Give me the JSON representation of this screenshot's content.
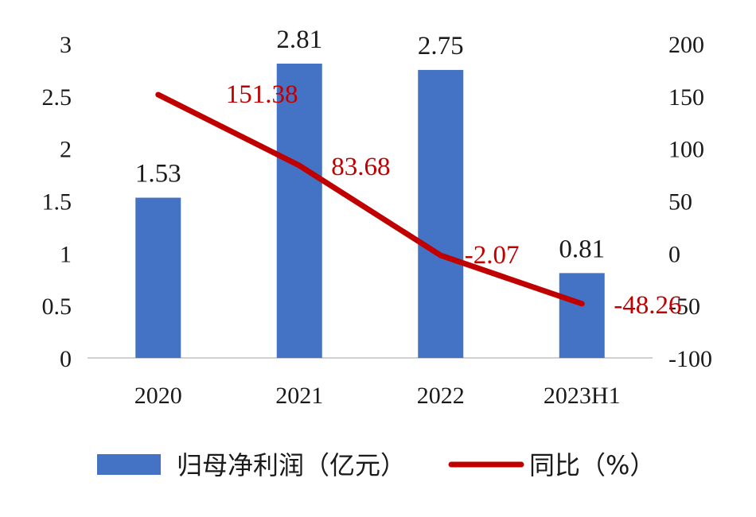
{
  "chart_data": {
    "type": "bar",
    "categories": [
      "2020",
      "2021",
      "2022",
      "2023H1"
    ],
    "series": [
      {
        "name": "归母净利润（亿元）",
        "type": "bar",
        "axis": "left",
        "values": [
          1.53,
          2.81,
          2.75,
          0.81
        ],
        "labels": [
          "1.53",
          "2.81",
          "2.75",
          "0.81"
        ],
        "color": "#4472C4"
      },
      {
        "name": "同比（%）",
        "type": "line",
        "axis": "right",
        "values": [
          151.38,
          83.68,
          -2.07,
          -48.26
        ],
        "labels": [
          "151.38",
          "83.68",
          "-2.07",
          "-48.26"
        ],
        "color": "#C00000"
      }
    ],
    "y_left": {
      "range": [
        0,
        3
      ],
      "ticks": [
        0,
        0.5,
        1,
        1.5,
        2,
        2.5,
        3
      ],
      "tick_labels": [
        "0",
        "0.5",
        "1",
        "1.5",
        "2",
        "2.5",
        "3"
      ]
    },
    "y_right": {
      "range": [
        -100,
        200
      ],
      "ticks": [
        -100,
        -50,
        0,
        50,
        100,
        150,
        200
      ],
      "tick_labels": [
        "-100",
        "-50",
        "0",
        "50",
        "100",
        "150",
        "200"
      ]
    },
    "title": "",
    "xlabel": "",
    "grid": false,
    "legend": "bottom",
    "axis_color": "#d0d0d0"
  }
}
